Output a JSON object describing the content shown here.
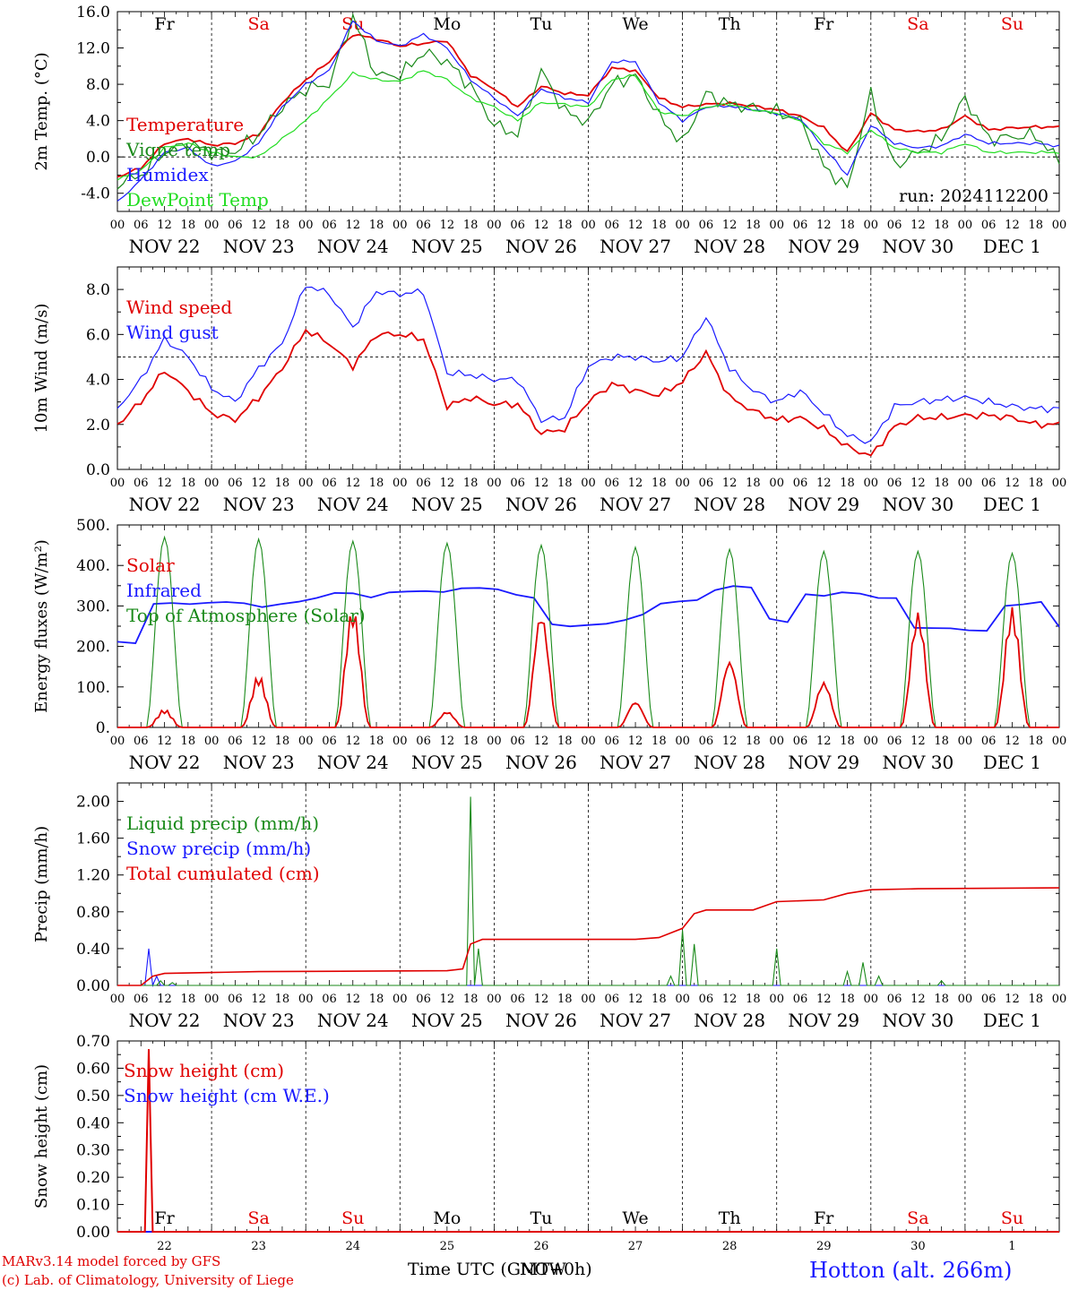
{
  "colors": {
    "red": "#e00000",
    "green": "#1a8a1a",
    "blue": "#1a1aff",
    "lightgreen": "#22dd22",
    "black": "#000000"
  },
  "hour_ticks": [
    "00",
    "06",
    "12",
    "18"
  ],
  "dates": [
    "NOV 22",
    "NOV 23",
    "NOV 24",
    "NOV 25",
    "NOV 26",
    "NOV 27",
    "NOV 28",
    "NOV 29",
    "NOV 30",
    "DEC  1"
  ],
  "weekdays": [
    {
      "label": "Fr",
      "weekend": false
    },
    {
      "label": "Sa",
      "weekend": true
    },
    {
      "label": "Su",
      "weekend": true
    },
    {
      "label": "Mo",
      "weekend": false
    },
    {
      "label": "Tu",
      "weekend": false
    },
    {
      "label": "We",
      "weekend": false
    },
    {
      "label": "Th",
      "weekend": false
    },
    {
      "label": "Fr",
      "weekend": false
    },
    {
      "label": "Sa",
      "weekend": true
    },
    {
      "label": "Su",
      "weekend": true
    }
  ],
  "day_numbers": [
    "22",
    "23",
    "24",
    "25",
    "26",
    "27",
    "28",
    "29",
    "30",
    "1"
  ],
  "footer": {
    "model": "MARv3.14 model forced by GFS",
    "copyright": "(c) Lab. of Climatology, University of Liege",
    "time_label": "Time UTC (GMT+0h)",
    "time_overlay": "NOW",
    "station": "Hotton (alt. 266m)"
  },
  "chart_data": [
    {
      "type": "line",
      "ylabel": "2m Temp. (°C)",
      "ylim": [
        -6,
        16
      ],
      "yticks": [
        "16.0",
        "12.0",
        "8.0",
        "4.0",
        "0.0",
        "-4.0"
      ],
      "ytick_values": [
        16,
        12,
        8,
        4,
        0,
        -4
      ],
      "dashed_ref": 0,
      "annotation": "run: 2024112200",
      "x_hours": [
        0,
        6,
        12,
        18,
        24,
        30,
        36,
        42,
        48,
        54,
        60,
        66,
        72,
        78,
        84,
        90,
        96,
        102,
        108,
        114,
        120,
        126,
        132,
        138,
        144,
        150,
        156,
        162,
        168,
        174,
        180,
        186,
        192,
        198,
        204,
        210,
        216,
        222,
        228,
        234,
        240
      ],
      "series": [
        {
          "name": "Temperature",
          "color": "red",
          "values": [
            -2.2,
            -1.2,
            1.5,
            2.0,
            1.3,
            1.5,
            2.5,
            6.0,
            8.5,
            10.5,
            13.5,
            13.0,
            12.2,
            12.5,
            12.8,
            9.0,
            7.5,
            5.5,
            7.8,
            7.0,
            6.8,
            9.8,
            9.5,
            6.5,
            5.5,
            5.8,
            5.9,
            5.6,
            5.2,
            4.5,
            3.2,
            0.5,
            4.8,
            3.0,
            2.8,
            3.0,
            4.5,
            3.0,
            3.2,
            3.3,
            3.3
          ]
        },
        {
          "name": "Vigne temp",
          "color": "green",
          "values": [
            -3.0,
            -2.0,
            0.5,
            1.5,
            0.5,
            0.6,
            2.5,
            5.5,
            7.5,
            8.0,
            15.5,
            9.0,
            9.0,
            11.5,
            10.5,
            7.8,
            3.5,
            2.5,
            9.5,
            5.0,
            3.8,
            8.0,
            9.0,
            4.5,
            1.5,
            7.0,
            5.8,
            5.4,
            5.0,
            4.0,
            -1.0,
            -3.5,
            7.0,
            -1.0,
            0.5,
            2.0,
            6.5,
            2.0,
            2.2,
            2.4,
            -0.5
          ]
        },
        {
          "name": "Humidex",
          "color": "blue",
          "values": [
            -5.0,
            -2.5,
            0.5,
            1.0,
            -1.0,
            -0.5,
            1.5,
            5.5,
            8.0,
            9.5,
            15.0,
            12.8,
            12.2,
            13.5,
            12.0,
            8.5,
            6.5,
            4.5,
            7.5,
            6.5,
            6.0,
            10.5,
            10.5,
            6.0,
            4.0,
            5.5,
            5.6,
            5.2,
            4.8,
            4.2,
            1.0,
            -2.0,
            3.5,
            1.5,
            1.0,
            1.2,
            2.5,
            1.5,
            1.5,
            1.5,
            1.2
          ]
        },
        {
          "name": "DewPoint Temp",
          "color": "lightgreen",
          "values": [
            -2.5,
            -1.5,
            1.0,
            1.5,
            0.5,
            0.0,
            0.0,
            2.0,
            4.0,
            6.5,
            9.2,
            8.5,
            8.3,
            9.5,
            8.5,
            6.5,
            5.5,
            4.0,
            6.0,
            5.8,
            5.5,
            8.5,
            9.0,
            5.0,
            4.5,
            5.5,
            5.8,
            5.2,
            4.8,
            4.0,
            1.5,
            0.5,
            3.0,
            1.0,
            0.5,
            0.5,
            1.5,
            0.5,
            0.5,
            0.5,
            0.5
          ]
        }
      ]
    },
    {
      "type": "line",
      "ylabel": "10m Wind (m/s)",
      "ylim": [
        0,
        9
      ],
      "yticks": [
        "8.0",
        "6.0",
        "4.0",
        "2.0",
        "0.0"
      ],
      "ytick_values": [
        8,
        6,
        4,
        2,
        0
      ],
      "dashed_ref": 5,
      "x_hours": [
        0,
        6,
        12,
        18,
        24,
        30,
        36,
        42,
        48,
        54,
        60,
        66,
        72,
        78,
        84,
        90,
        96,
        102,
        108,
        114,
        120,
        126,
        132,
        138,
        144,
        150,
        156,
        162,
        168,
        174,
        180,
        186,
        192,
        198,
        204,
        210,
        216,
        222,
        228,
        234,
        240
      ],
      "series": [
        {
          "name": "Wind speed",
          "color": "red",
          "values": [
            2.0,
            3.0,
            4.4,
            3.5,
            2.5,
            2.2,
            3.2,
            4.5,
            6.2,
            5.6,
            4.6,
            6.0,
            6.0,
            5.8,
            2.8,
            3.2,
            2.9,
            2.9,
            1.6,
            1.8,
            3.0,
            3.8,
            3.5,
            3.3,
            3.9,
            5.2,
            3.2,
            2.6,
            2.2,
            2.3,
            1.8,
            1.0,
            0.6,
            1.9,
            2.3,
            2.3,
            2.4,
            2.4,
            2.3,
            2.0,
            2.0
          ]
        },
        {
          "name": "Wind gust",
          "color": "blue",
          "values": [
            2.7,
            4.0,
            5.8,
            5.0,
            3.6,
            3.0,
            4.5,
            5.6,
            8.2,
            7.8,
            6.3,
            7.9,
            7.8,
            7.9,
            4.3,
            4.2,
            4.0,
            4.0,
            2.2,
            2.3,
            4.6,
            5.0,
            5.0,
            4.8,
            5.0,
            6.8,
            4.5,
            3.5,
            3.0,
            3.5,
            2.5,
            1.5,
            1.2,
            2.8,
            3.0,
            3.1,
            3.2,
            3.0,
            2.8,
            2.7,
            2.7
          ]
        }
      ]
    },
    {
      "type": "line",
      "ylabel": "Energy fluxes (W/m²)",
      "ylim": [
        0,
        500
      ],
      "yticks": [
        "500.",
        "400.",
        "300.",
        "200.",
        "100.",
        "0."
      ],
      "ytick_values": [
        500,
        400,
        300,
        200,
        100,
        0
      ],
      "days": 10,
      "solar_peaks": [
        45,
        130,
        300,
        40,
        290,
        65,
        170,
        115,
        290,
        300
      ],
      "toa_peaks": [
        470,
        465,
        460,
        455,
        450,
        445,
        440,
        435,
        435,
        430
      ],
      "infrared_hourly": [
        215,
        210,
        300,
        305,
        310,
        310,
        305,
        305,
        300,
        305,
        310,
        320,
        330,
        330,
        325,
        335,
        330,
        335,
        340,
        345,
        340,
        340,
        330,
        320,
        255,
        250,
        250,
        255,
        270,
        280,
        300,
        310,
        320,
        340,
        345,
        345,
        270,
        260,
        330,
        325,
        330,
        330,
        325,
        320,
        240,
        245,
        250,
        240,
        235,
        300,
        305,
        310,
        250
      ]
    },
    {
      "type": "line",
      "ylabel": "Precip (mm/h)",
      "ylim": [
        0,
        2.2
      ],
      "yticks": [
        "2.00",
        "1.60",
        "1.20",
        "0.80",
        "0.40",
        "0.00"
      ],
      "ytick_values": [
        2.0,
        1.6,
        1.2,
        0.8,
        0.4,
        0.0
      ],
      "series": [
        {
          "name": "Liquid precip (mm/h)",
          "color": "green"
        },
        {
          "name": "Snow precip (mm/h)",
          "color": "blue"
        },
        {
          "name": "Total cumulated (cm)",
          "color": "red"
        }
      ],
      "liquid_spikes": [
        [
          11,
          0.05
        ],
        [
          14,
          0.03
        ],
        [
          90,
          2.05
        ],
        [
          92,
          0.4
        ],
        [
          141,
          0.1
        ],
        [
          144,
          0.6
        ],
        [
          147,
          0.45
        ],
        [
          168,
          0.4
        ],
        [
          186,
          0.15
        ],
        [
          190,
          0.25
        ],
        [
          194,
          0.1
        ],
        [
          210,
          0.05
        ]
      ],
      "snow_spikes": [
        [
          8,
          0.4
        ],
        [
          10,
          0.1
        ]
      ],
      "cumulated": [
        [
          0,
          0.0
        ],
        [
          6,
          0.0
        ],
        [
          9,
          0.1
        ],
        [
          12,
          0.13
        ],
        [
          24,
          0.14
        ],
        [
          36,
          0.15
        ],
        [
          84,
          0.16
        ],
        [
          88,
          0.18
        ],
        [
          90,
          0.45
        ],
        [
          93,
          0.5
        ],
        [
          132,
          0.5
        ],
        [
          138,
          0.52
        ],
        [
          144,
          0.62
        ],
        [
          147,
          0.78
        ],
        [
          150,
          0.82
        ],
        [
          162,
          0.82
        ],
        [
          168,
          0.91
        ],
        [
          180,
          0.93
        ],
        [
          186,
          1.0
        ],
        [
          192,
          1.04
        ],
        [
          204,
          1.05
        ],
        [
          240,
          1.06
        ]
      ]
    },
    {
      "type": "line",
      "ylabel": "Snow height (cm)",
      "ylim": [
        0,
        0.7
      ],
      "yticks": [
        "0.70",
        "0.60",
        "0.50",
        "0.40",
        "0.30",
        "0.20",
        "0.10",
        "0.00"
      ],
      "ytick_values": [
        0.7,
        0.6,
        0.5,
        0.4,
        0.3,
        0.2,
        0.1,
        0.0
      ],
      "series": [
        {
          "name": "Snow height (cm)",
          "color": "red",
          "points": [
            [
              0,
              0
            ],
            [
              7,
              0
            ],
            [
              8,
              0.67
            ],
            [
              9,
              0
            ],
            [
              240,
              0
            ]
          ]
        },
        {
          "name": "Snow height (cm W.E.)",
          "color": "blue",
          "points": [
            [
              0,
              0
            ],
            [
              240,
              0
            ]
          ]
        }
      ]
    }
  ]
}
